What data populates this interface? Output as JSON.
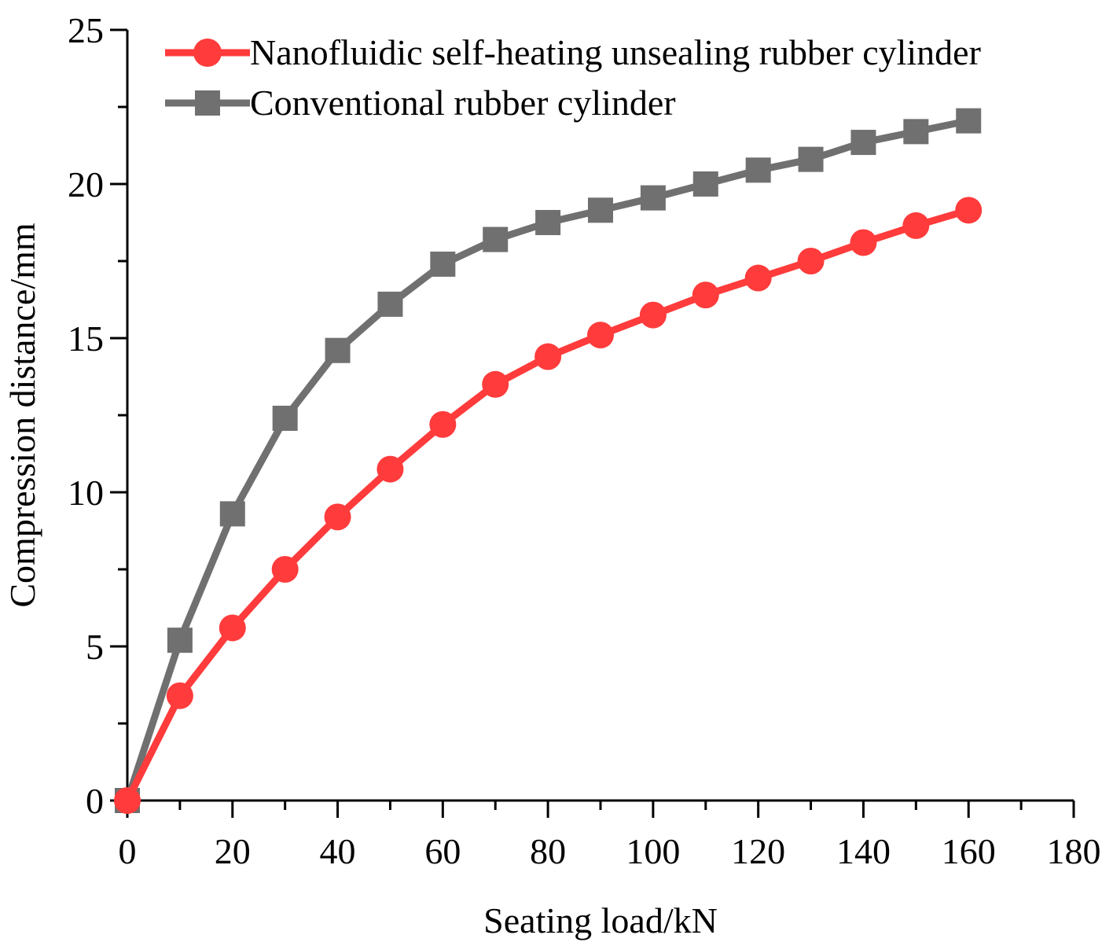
{
  "chart_data": {
    "type": "line",
    "title": "",
    "xlabel": "Seating load/kN",
    "ylabel": "Compression distance/mm",
    "xlim": [
      0,
      180
    ],
    "ylim": [
      0,
      25
    ],
    "xticks": [
      "0",
      "20",
      "40",
      "60",
      "80",
      "100",
      "120",
      "140",
      "160",
      "180"
    ],
    "yticks": [
      "0",
      "5",
      "10",
      "15",
      "20",
      "25"
    ],
    "grid": false,
    "legend_position": "top-left",
    "series": [
      {
        "name": "Nanofluidic self-heating unsealing rubber cylinder",
        "color": "#ff3b3b",
        "marker": "circle",
        "x": [
          0,
          10,
          20,
          30,
          40,
          50,
          60,
          70,
          80,
          90,
          100,
          110,
          120,
          130,
          140,
          150,
          160
        ],
        "values": [
          0,
          3.4,
          5.6,
          7.5,
          9.2,
          10.75,
          12.2,
          13.5,
          14.4,
          15.1,
          15.75,
          16.4,
          16.95,
          17.5,
          18.1,
          18.65,
          19.15
        ]
      },
      {
        "name": "Conventional rubber cylinder",
        "color": "#707070",
        "marker": "square",
        "x": [
          0,
          10,
          20,
          30,
          40,
          50,
          60,
          70,
          80,
          90,
          100,
          110,
          120,
          130,
          140,
          150,
          160
        ],
        "values": [
          0,
          5.2,
          9.3,
          12.4,
          14.6,
          16.1,
          17.4,
          18.2,
          18.75,
          19.15,
          19.55,
          20.0,
          20.45,
          20.8,
          21.35,
          21.7,
          22.05
        ]
      }
    ]
  }
}
